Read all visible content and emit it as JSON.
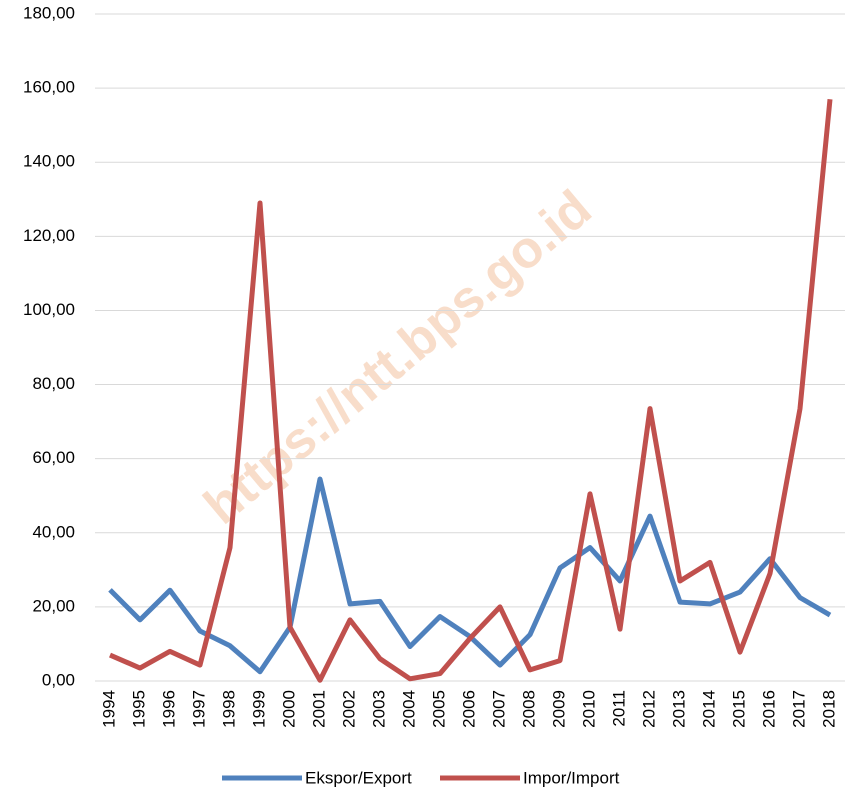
{
  "chart_data": {
    "type": "line",
    "watermark": "https://ntt.bps.go.id",
    "categories": [
      "1994",
      "1995",
      "1996",
      "1997",
      "1998",
      "1999",
      "2000",
      "2001",
      "2002",
      "2003",
      "2004",
      "2005",
      "2006",
      "2007",
      "2008",
      "2009",
      "2010",
      "2011",
      "2012",
      "2013",
      "2014",
      "2015",
      "2016",
      "2017",
      "2018"
    ],
    "series": [
      {
        "name": "Ekspor/Export",
        "color": "#4f81bd",
        "values": [
          24.6,
          16.5,
          24.5,
          13.5,
          9.5,
          2.5,
          14.5,
          54.5,
          20.8,
          21.5,
          9.3,
          17.4,
          12.0,
          4.3,
          12.5,
          30.5,
          36.0,
          27.0,
          44.5,
          21.3,
          20.8,
          24.0,
          33.0,
          22.5,
          17.8
        ]
      },
      {
        "name": "Impor/Import",
        "color": "#c0504d",
        "values": [
          7.0,
          3.5,
          8.0,
          4.3,
          36.0,
          129.0,
          14.5,
          0.2,
          16.5,
          6.0,
          0.6,
          2.0,
          11.5,
          20.0,
          3.0,
          5.5,
          50.5,
          14.0,
          73.5,
          27.0,
          32.0,
          7.8,
          29.0,
          73.5,
          157.0
        ]
      }
    ],
    "ylim": [
      0,
      180
    ],
    "yticks": [
      {
        "value": 0,
        "label": "0,00"
      },
      {
        "value": 20,
        "label": "20,00"
      },
      {
        "value": 40,
        "label": "40,00"
      },
      {
        "value": 60,
        "label": "60,00"
      },
      {
        "value": 80,
        "label": "80,00"
      },
      {
        "value": 100,
        "label": "100,00"
      },
      {
        "value": 120,
        "label": "120,00"
      },
      {
        "value": 140,
        "label": "140,00"
      },
      {
        "value": 160,
        "label": "160,00"
      },
      {
        "value": 180,
        "label": "180,00"
      }
    ],
    "grid": true,
    "legend": "bottom"
  }
}
